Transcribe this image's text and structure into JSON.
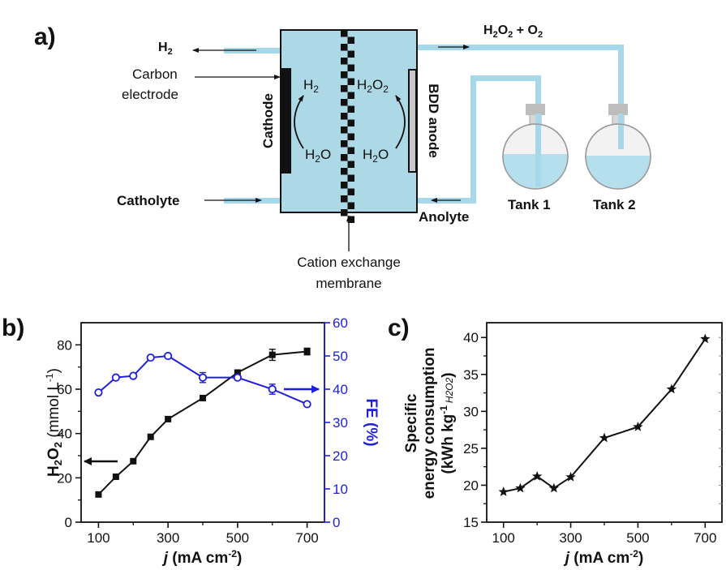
{
  "panel_a": {
    "label": "a)",
    "h2_out": "H",
    "h2_out_sub": "2",
    "carbon_line1": "Carbon",
    "carbon_line2": "electrode",
    "catholyte": "Catholyte",
    "cathode": "Cathode",
    "bdd_anode": "BDD anode",
    "h2_cell": "H",
    "h2_cell_sub": "2",
    "h2o2_cell": "H",
    "h2o2_cell_sub1": "2",
    "h2o2_cell_o": "O",
    "h2o2_cell_sub2": "2",
    "h2o_left": "H",
    "h2o_left_sub": "2",
    "h2o_left_o": "O",
    "h2o_right": "H",
    "h2o_right_sub": "2",
    "h2o_right_o": "O",
    "product_h": "H",
    "product_sub1": "2",
    "product_o": "O",
    "product_sub2": "2",
    "product_plus": " + O",
    "product_sub3": "2",
    "tank1": "Tank 1",
    "tank2": "Tank 2",
    "anolyte": "Anolyte",
    "membrane_line1": "Cation exchange",
    "membrane_line2": "membrane",
    "colors": {
      "cell": "#add8e6",
      "pipe": "#a6d8ea",
      "flask_gray": "#bdbdbd",
      "membrane": "#111111"
    }
  },
  "panel_b": {
    "label": "b)",
    "ylabel_left_main": "H",
    "ylabel_left_sub1": "2",
    "ylabel_left_o": "O",
    "ylabel_left_sub2": "2",
    "ylabel_left_unit": " (mmol L",
    "ylabel_left_sup": "-1",
    "ylabel_left_close": ")",
    "ylabel_right": "FE (%)",
    "xlabel_j": "j",
    "xlabel_unit": " (mA cm",
    "xlabel_sup": "-2",
    "xlabel_close": ")",
    "xticks": [
      "100",
      "300",
      "500",
      "700"
    ],
    "yticks_left": [
      "0",
      "20",
      "40",
      "60",
      "80"
    ],
    "yticks_right": [
      "0",
      "10",
      "20",
      "30",
      "40",
      "50",
      "60"
    ],
    "colors": {
      "left_series": "#111111",
      "right_series": "#1e1ee0"
    }
  },
  "panel_c": {
    "label": "c)",
    "ylabel_line1": "Specific",
    "ylabel_line2": "energy consumption",
    "ylabel_line3_open": "(kWh kg",
    "ylabel_line3_sup": "-1",
    "ylabel_line3_sub": "H2O2",
    "ylabel_line3_close": ")",
    "xlabel_j": "j",
    "xlabel_unit": " (mA cm",
    "xlabel_sup": "-2",
    "xlabel_close": ")",
    "xticks": [
      "100",
      "300",
      "500",
      "700"
    ],
    "yticks": [
      "15",
      "20",
      "25",
      "30",
      "35",
      "40"
    ]
  },
  "chart_data": [
    {
      "type": "line",
      "panel": "b",
      "xlabel": "j (mA cm-2)",
      "ylabel": "H2O2 (mmol L-1)",
      "y2label": "FE (%)",
      "xlim": [
        50,
        750
      ],
      "ylim": [
        0,
        90
      ],
      "y2lim": [
        0,
        60
      ],
      "series": [
        {
          "axis": "left",
          "marker": "square",
          "color": "#111111",
          "x": [
            100,
            150,
            200,
            250,
            300,
            400,
            500,
            600,
            700
          ],
          "y": [
            12.5,
            20.5,
            27.5,
            38.5,
            46.5,
            56,
            67.5,
            75.5,
            77
          ],
          "err": [
            0,
            0,
            0,
            0,
            0,
            1,
            1,
            2.5,
            1.5
          ]
        },
        {
          "axis": "right",
          "marker": "circle",
          "color": "#1e1ee0",
          "x": [
            100,
            150,
            200,
            250,
            300,
            400,
            500,
            600,
            700
          ],
          "y": [
            39,
            43.5,
            44,
            49.5,
            50,
            43.5,
            43.5,
            40,
            35.5
          ],
          "err": [
            0,
            0,
            0,
            0,
            0,
            1.5,
            0.5,
            1.5,
            0
          ]
        }
      ],
      "arrows": [
        {
          "direction": "left",
          "color": "#111111"
        },
        {
          "direction": "right",
          "color": "#1e1ee0"
        }
      ]
    },
    {
      "type": "line",
      "panel": "c",
      "xlabel": "j (mA cm-2)",
      "ylabel": "Specific energy consumption (kWh kg-1 H2O2)",
      "xlim": [
        50,
        750
      ],
      "ylim": [
        15,
        42
      ],
      "series": [
        {
          "marker": "star",
          "color": "#111111",
          "x": [
            100,
            150,
            200,
            250,
            300,
            400,
            500,
            600,
            700
          ],
          "y": [
            19.1,
            19.6,
            21.2,
            19.6,
            21.1,
            26.4,
            27.9,
            33,
            39.8
          ]
        }
      ]
    }
  ]
}
